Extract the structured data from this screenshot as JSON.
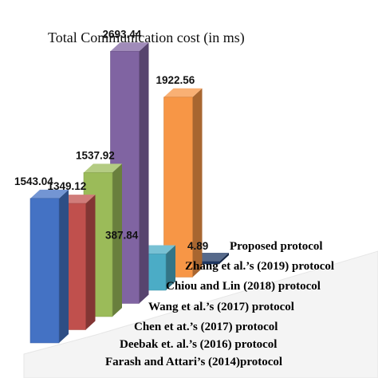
{
  "chart_data": {
    "type": "bar",
    "title": "Total Communication  cost (in ms)",
    "categories": [
      "Farash and Attari’s (2014)protocol",
      "Deebak et. al.’s (2016) protocol",
      "Chen et at.’s (2017) protocol",
      "Wang et al.’s (2017) protocol",
      "Chiou and Lin (2018) protocol",
      "Zhang et al.’s (2019) protocol",
      "Proposed protocol"
    ],
    "values": [
      1543.04,
      1349.12,
      1537.92,
      2693.44,
      387.84,
      1922.56,
      4.89
    ],
    "value_labels": [
      "1543.04",
      "1349.12",
      "1537.92",
      "2693.44",
      "387.84",
      "1922.56",
      "4.89"
    ],
    "colors": [
      "#4472c4",
      "#c0504d",
      "#9bbb59",
      "#8064a2",
      "#4bacc6",
      "#f79646",
      "#1f3864"
    ],
    "ylim": [
      0,
      2700
    ],
    "style": "3d-bars",
    "grid": false
  }
}
